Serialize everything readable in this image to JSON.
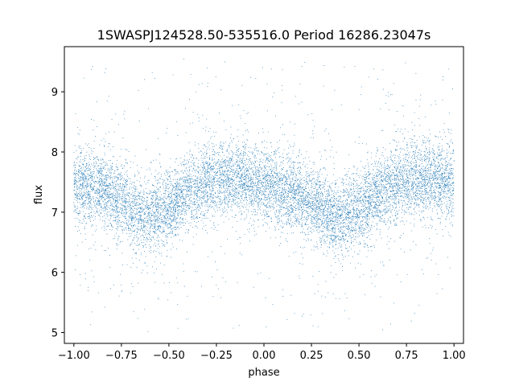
{
  "chart_data": {
    "type": "scatter",
    "title": "1SWASPJ124528.50-535516.0 Period 16286.23047s",
    "xlabel": "phase",
    "ylabel": "flux",
    "xlim": [
      -1.05,
      1.05
    ],
    "ylim": [
      4.82,
      9.75
    ],
    "xticks": [
      -1.0,
      -0.75,
      -0.5,
      -0.25,
      0.0,
      0.25,
      0.5,
      0.75,
      1.0
    ],
    "xtick_labels": [
      "−1.00",
      "−0.75",
      "−0.50",
      "−0.25",
      "0.00",
      "0.25",
      "0.50",
      "0.75",
      "1.00"
    ],
    "yticks": [
      5,
      6,
      7,
      8,
      9
    ],
    "ytick_labels": [
      "5",
      "6",
      "7",
      "8",
      "9"
    ],
    "grid": false,
    "marker_color": "#1f77b4",
    "series": [
      {
        "phase_range": [
          -1.0,
          1.0
        ],
        "profile_phase": [
          -1.0,
          -0.875,
          -0.75,
          -0.625,
          -0.5,
          -0.375,
          -0.25,
          -0.125,
          0.0,
          0.125,
          0.25,
          0.375,
          0.5,
          0.625,
          0.75,
          0.875,
          1.0
        ],
        "profile_flux": [
          7.45,
          7.4,
          7.2,
          6.9,
          7.05,
          7.4,
          7.55,
          7.55,
          7.45,
          7.35,
          7.15,
          6.9,
          7.05,
          7.35,
          7.55,
          7.55,
          7.45
        ],
        "scatter_std": 0.3,
        "outlier_flux_range": [
          5.0,
          9.55
        ]
      }
    ]
  }
}
